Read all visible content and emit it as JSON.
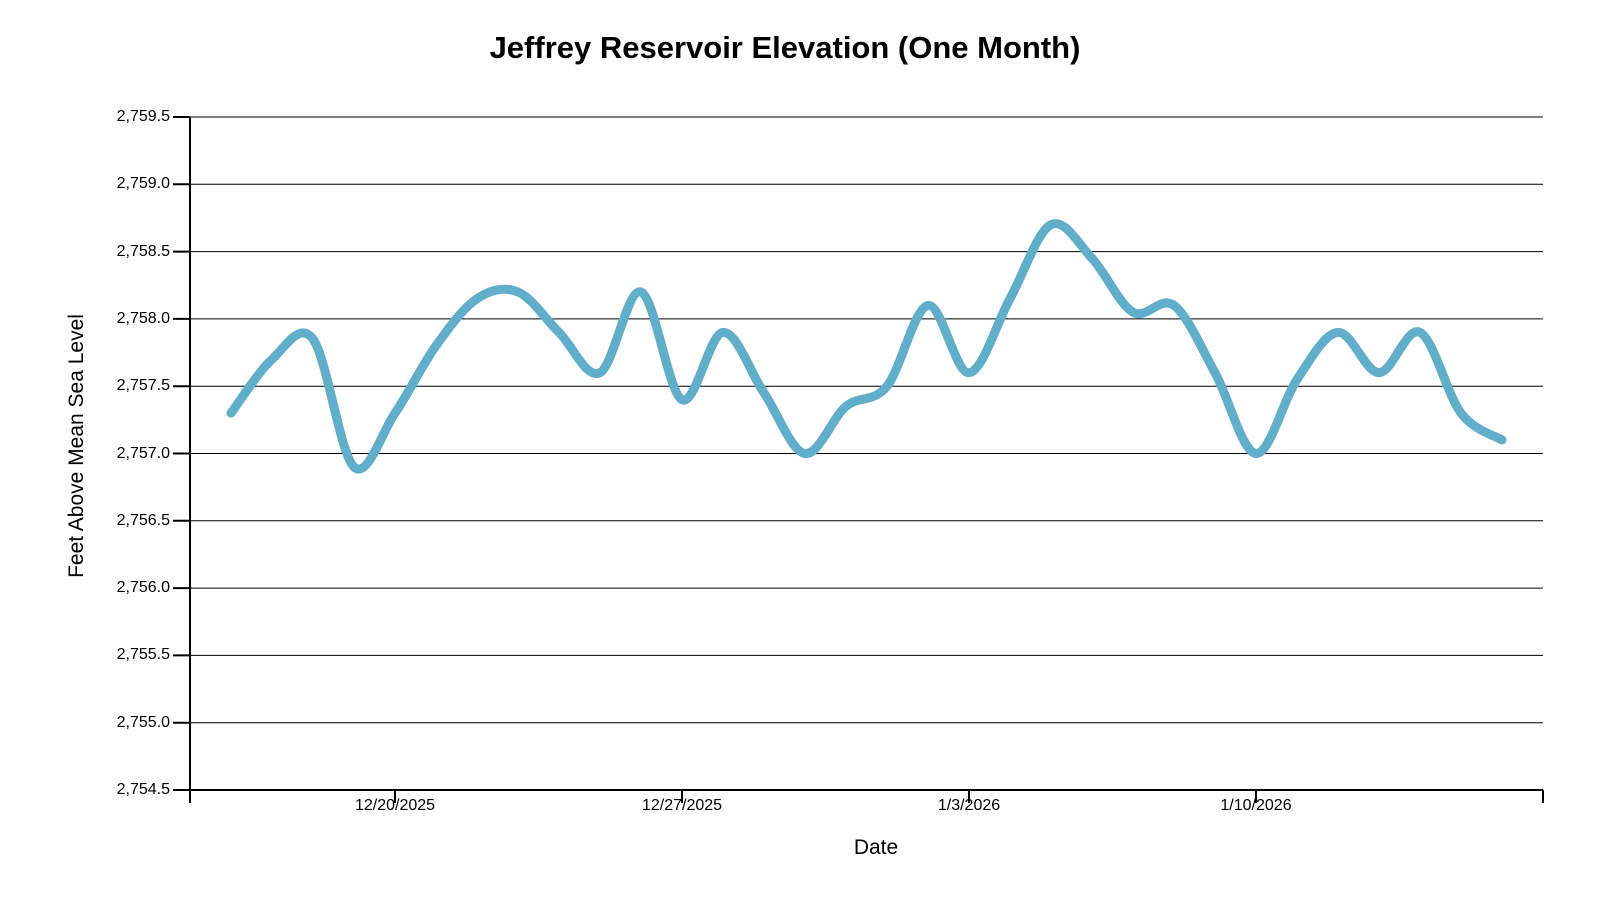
{
  "chart_data": {
    "type": "line",
    "title": "Jeffrey Reservoir Elevation (One Month)",
    "xlabel": "Date",
    "ylabel": "Feet Above Mean Sea Level",
    "ylim": [
      2754.5,
      2759.5
    ],
    "ytick_step": 0.5,
    "grid": "horizontal",
    "legend": "none",
    "line_color": "#61AECB",
    "axis_color": "#000000",
    "y_ticks": [
      {
        "label": "2,759.5",
        "value": 2759.5
      },
      {
        "label": "2,759.0",
        "value": 2759.0
      },
      {
        "label": "2,758.5",
        "value": 2758.5
      },
      {
        "label": "2,758.0",
        "value": 2758.0
      },
      {
        "label": "2,757.5",
        "value": 2757.5
      },
      {
        "label": "2,757.0",
        "value": 2757.0
      },
      {
        "label": "2,756.5",
        "value": 2756.5
      },
      {
        "label": "2,756.0",
        "value": 2756.0
      },
      {
        "label": "2,755.5",
        "value": 2755.5
      },
      {
        "label": "2,755.0",
        "value": 2755.0
      },
      {
        "label": "2,754.5",
        "value": 2754.5
      }
    ],
    "x_ticks": [
      {
        "label": "12/20/2025",
        "day_index": 4
      },
      {
        "label": "12/27/2025",
        "day_index": 11
      },
      {
        "label": "1/3/2026",
        "day_index": 18
      },
      {
        "label": "1/10/2026",
        "day_index": 25
      }
    ],
    "series": [
      {
        "name": "Reservoir Elevation",
        "x": [
          "12/16/2025",
          "12/17/2025",
          "12/18/2025",
          "12/19/2025",
          "12/20/2025",
          "12/21/2025",
          "12/22/2025",
          "12/23/2025",
          "12/24/2025",
          "12/25/2025",
          "12/26/2025",
          "12/27/2025",
          "12/28/2025",
          "12/29/2025",
          "12/30/2025",
          "12/31/2025",
          "1/1/2026",
          "1/2/2026",
          "1/3/2026",
          "1/4/2026",
          "1/5/2026",
          "1/6/2026",
          "1/7/2026",
          "1/8/2026",
          "1/9/2026",
          "1/10/2026",
          "1/11/2026",
          "1/12/2026",
          "1/13/2026",
          "1/14/2026",
          "1/15/2026",
          "1/16/2026"
        ],
        "values": [
          2757.3,
          2757.7,
          2757.85,
          2756.9,
          2757.3,
          2757.8,
          2758.15,
          2758.2,
          2757.9,
          2757.6,
          2758.2,
          2757.4,
          2757.9,
          2757.45,
          2757.0,
          2757.35,
          2757.5,
          2758.1,
          2757.6,
          2758.15,
          2758.7,
          2758.45,
          2758.05,
          2758.1,
          2757.6,
          2757.0,
          2757.55,
          2757.9,
          2757.6,
          2757.9,
          2757.3,
          2757.1
        ]
      }
    ]
  }
}
